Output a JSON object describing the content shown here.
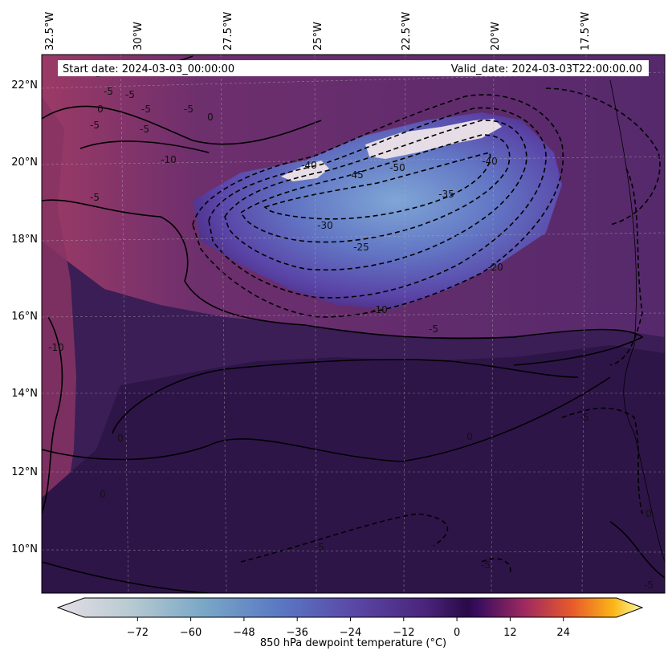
{
  "header": {
    "start_date": "Start date: 2024-03-03_00:00:00",
    "valid_date": "Valid_date: 2024-03-03T22:00:00.00"
  },
  "axes": {
    "lon_labels": [
      "32.5°W",
      "30°W",
      "27.5°W",
      "25°W",
      "22.5°W",
      "20°W",
      "17.5°W"
    ],
    "lat_labels": [
      "22°N",
      "20°N",
      "18°N",
      "16°N",
      "14°N",
      "12°N",
      "10°N"
    ]
  },
  "contour_labels": [
    "-5",
    "-5",
    "0",
    "0",
    "-5",
    "-5",
    "-10",
    "-5",
    "0",
    "-10",
    "-40",
    "-45",
    "-50",
    "-35",
    "-40",
    "-30",
    "-25",
    "-20",
    "-10",
    "-5",
    "0",
    "-5",
    "-5",
    "-5",
    "0",
    "-5",
    "-5",
    "-5",
    "0"
  ],
  "colorbar": {
    "label": "850 hPa dewpoint temperature (°C)",
    "ticks": [
      "−72",
      "−60",
      "−48",
      "−36",
      "−24",
      "−12",
      "0",
      "12",
      "24"
    ],
    "tick_values": [
      -72,
      -60,
      -48,
      -36,
      -24,
      -12,
      0,
      12,
      24
    ],
    "range": [
      -84,
      36
    ]
  },
  "colors": {
    "background_field": "#3a1e55",
    "moist_area": "#4a2468",
    "warm_edge": "#8a3868",
    "dry_core": "#6a8fc9",
    "very_dry": "#e6dde6"
  }
}
